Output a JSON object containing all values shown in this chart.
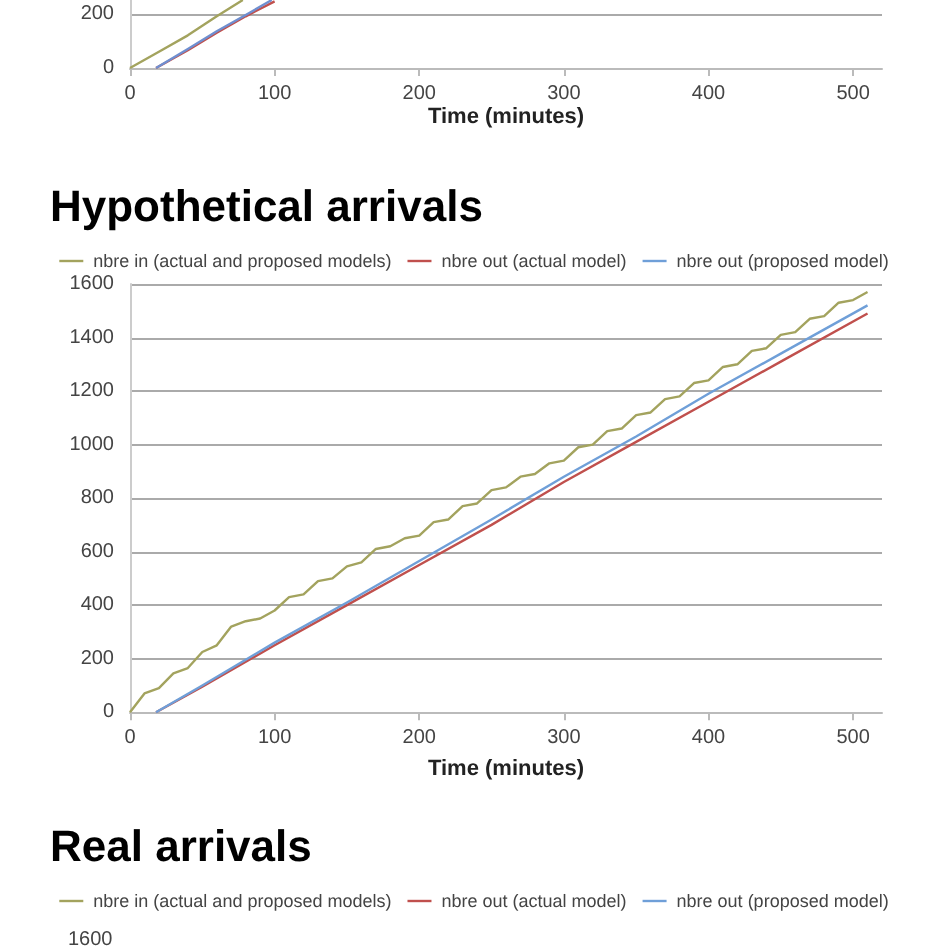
{
  "chart_data": [
    {
      "type": "line",
      "xlabel": "Time (minutes)",
      "xlim": [
        0,
        520
      ],
      "xticks": [
        0,
        100,
        200,
        300,
        400,
        500
      ],
      "ylim": [
        0,
        250
      ],
      "yticks": [
        0,
        200
      ],
      "grid": "y",
      "legend": false,
      "marker": "none",
      "series": [
        {
          "color": "#a3a35e",
          "x": [
            0,
            20,
            40,
            60,
            78
          ],
          "values": [
            0,
            60,
            120,
            190,
            250
          ]
        },
        {
          "color": "#c0504d",
          "x": [
            18,
            40,
            60,
            80,
            100
          ],
          "values": [
            0,
            65,
            130,
            190,
            245
          ]
        },
        {
          "color": "#6f8fd0",
          "x": [
            18,
            40,
            60,
            80,
            98
          ],
          "values": [
            0,
            70,
            135,
            195,
            250
          ]
        }
      ]
    },
    {
      "type": "line",
      "title": "Hypothetical arrivals",
      "xlabel": "Time (minutes)",
      "xlim": [
        0,
        520
      ],
      "xticks": [
        0,
        100,
        200,
        300,
        400,
        500
      ],
      "ylim": [
        0,
        1600
      ],
      "yticks": [
        0,
        200,
        400,
        600,
        800,
        1000,
        1200,
        1400,
        1600
      ],
      "grid": "y",
      "legend": "top",
      "marker": "none",
      "series": [
        {
          "name": "nbre in (actual and proposed models)",
          "color": "#a3a35e",
          "x": [
            0,
            10,
            20,
            30,
            40,
            50,
            60,
            70,
            80,
            90,
            100,
            110,
            120,
            130,
            140,
            150,
            160,
            170,
            180,
            190,
            200,
            210,
            220,
            230,
            240,
            250,
            260,
            270,
            280,
            290,
            300,
            310,
            320,
            330,
            340,
            350,
            360,
            370,
            380,
            390,
            400,
            410,
            420,
            430,
            440,
            450,
            460,
            470,
            480,
            490,
            500,
            510
          ],
          "values": [
            0,
            70,
            90,
            145,
            165,
            225,
            250,
            320,
            340,
            350,
            380,
            430,
            440,
            490,
            500,
            545,
            560,
            610,
            620,
            650,
            660,
            710,
            720,
            770,
            780,
            830,
            840,
            880,
            890,
            930,
            940,
            990,
            1000,
            1050,
            1060,
            1110,
            1120,
            1170,
            1180,
            1230,
            1240,
            1290,
            1300,
            1350,
            1360,
            1410,
            1420,
            1470,
            1480,
            1530,
            1540,
            1570
          ]
        },
        {
          "name": "nbre out (actual model)",
          "color": "#c0504d",
          "x": [
            18,
            50,
            100,
            150,
            200,
            250,
            300,
            350,
            400,
            450,
            510
          ],
          "values": [
            0,
            95,
            250,
            400,
            550,
            700,
            860,
            1010,
            1160,
            1310,
            1490
          ]
        },
        {
          "name": "nbre out (proposed model)",
          "color": "#6f9fd8",
          "x": [
            18,
            50,
            100,
            150,
            200,
            250,
            300,
            350,
            400,
            450,
            510
          ],
          "values": [
            0,
            100,
            260,
            410,
            565,
            720,
            880,
            1030,
            1190,
            1340,
            1520
          ]
        }
      ]
    },
    {
      "type": "other",
      "title": "Real arrivals",
      "annotations": [
        "1600"
      ],
      "legend": "top",
      "series": [
        {
          "name": "nbre in (actual and proposed models)",
          "color": "#a3a35e"
        },
        {
          "name": "nbre out (actual model)",
          "color": "#c0504d"
        },
        {
          "name": "nbre out (proposed model)",
          "color": "#6f9fd8"
        }
      ]
    }
  ]
}
